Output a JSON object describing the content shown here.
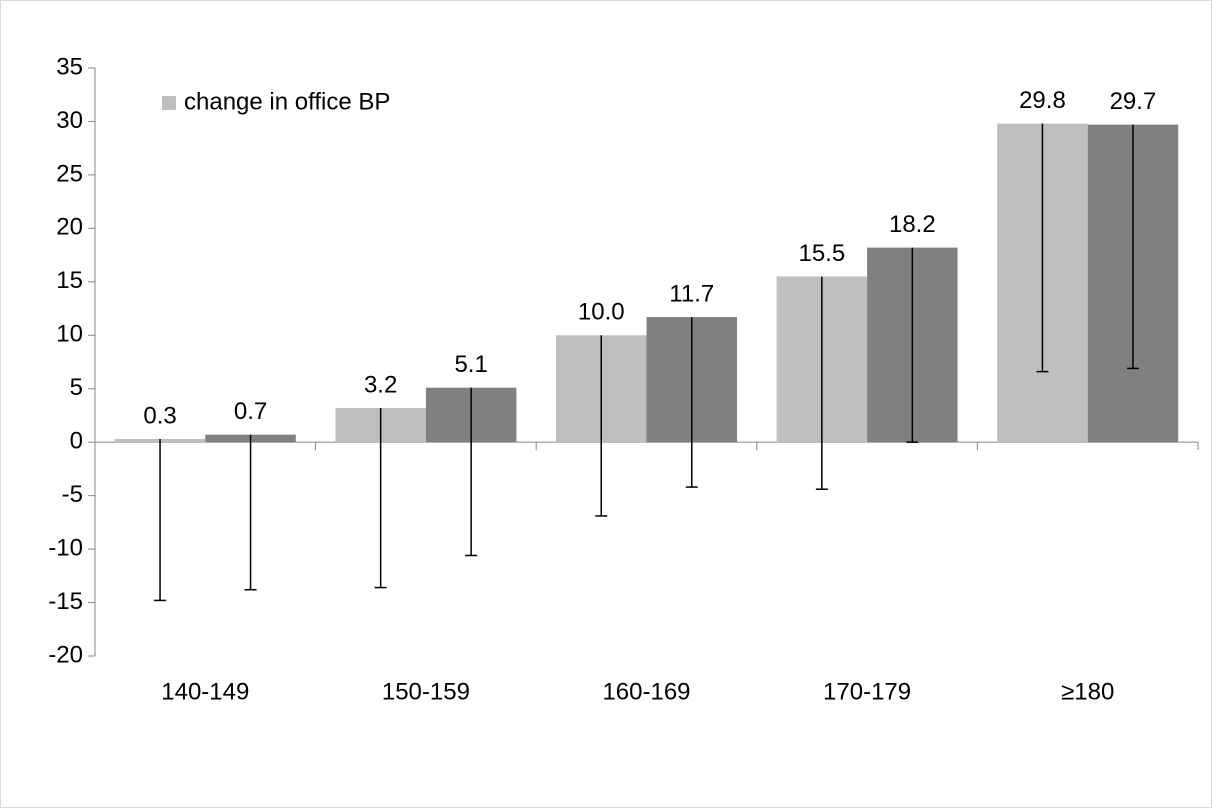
{
  "chart_data": {
    "type": "bar",
    "categories": [
      "140-149",
      "150-159",
      "160-169",
      "170-179",
      "≥180"
    ],
    "series": [
      {
        "name": "change in office  BP",
        "color": "#bfbfbf",
        "values": [
          0.3,
          3.2,
          10,
          15.5,
          29.8
        ],
        "value_labels": [
          "0.3",
          "3.2",
          "10.0",
          "15.5",
          "29.8"
        ],
        "errors_minus": [
          15.1,
          16.8,
          16.9,
          19.9,
          23.2
        ]
      },
      {
        "color": "#808080",
        "values": [
          0.7,
          5.1,
          11.7,
          18.2,
          29.7
        ],
        "value_labels": [
          "0.7",
          "5.1",
          "11.7",
          "18.2",
          "29.7"
        ],
        "errors_minus": [
          14.5,
          15.7,
          15.9,
          18.2,
          22.8
        ]
      }
    ],
    "ylim": [
      -20,
      35
    ],
    "yticks": [
      -20,
      -15,
      -10,
      -5,
      0,
      5,
      10,
      15,
      20,
      25,
      30,
      35
    ],
    "legend": "top-left"
  }
}
